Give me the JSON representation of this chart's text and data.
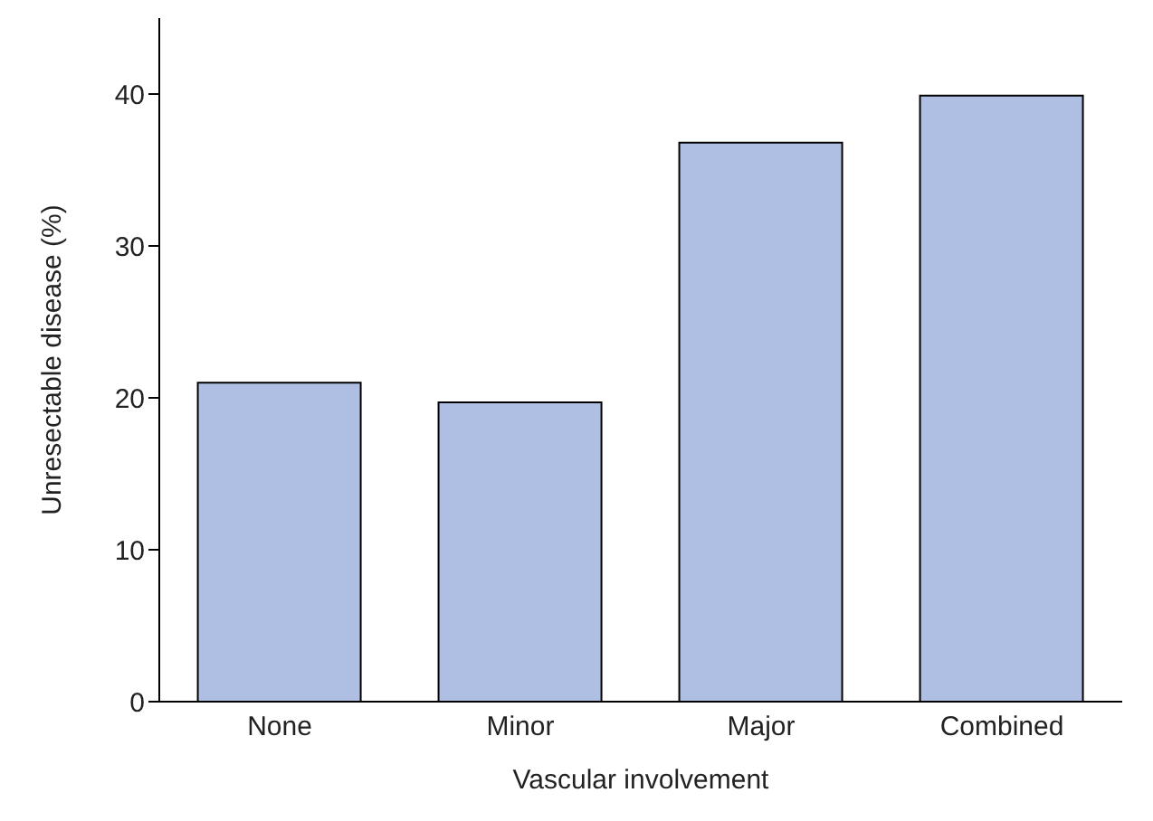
{
  "chart_data": {
    "type": "bar",
    "xlabel": "Vascular involvement",
    "ylabel": "Unresectable disease (%)",
    "categories": [
      "None",
      "Minor",
      "Major",
      "Combined"
    ],
    "values": [
      21,
      19.7,
      36.8,
      39.9
    ],
    "color": "#aebfe3",
    "ylim": [
      0,
      45
    ],
    "yticks": [
      0,
      10,
      20,
      30,
      40
    ],
    "grid": false
  }
}
